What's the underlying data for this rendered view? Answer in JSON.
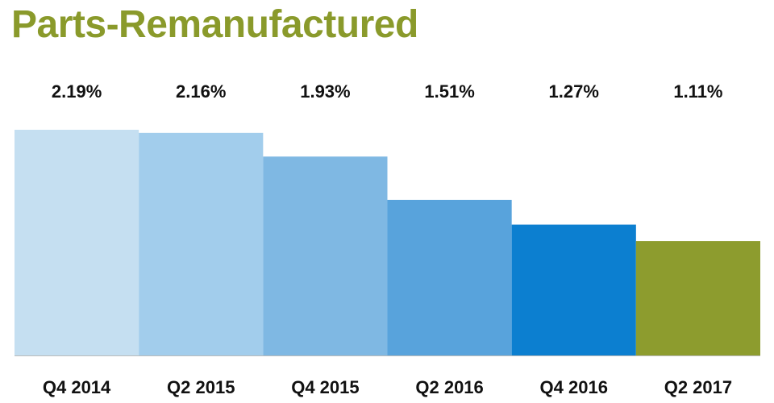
{
  "chart_data": {
    "type": "bar",
    "title": "Parts-Remanufactured",
    "categories": [
      "Q4 2014",
      "Q2 2015",
      "Q4 2015",
      "Q2 2016",
      "Q4 2016",
      "Q2 2017"
    ],
    "values": [
      2.19,
      2.16,
      1.93,
      1.51,
      1.27,
      1.11
    ],
    "data_labels": [
      "2.19%",
      "2.16%",
      "1.93%",
      "1.51%",
      "1.27%",
      "1.11%"
    ],
    "colors": [
      "#c5dff1",
      "#a2cdec",
      "#7fb8e3",
      "#58a3dc",
      "#0c7fd0",
      "#8d9c2e"
    ],
    "xlabel": "",
    "ylabel": "",
    "ylim": [
      0,
      2.19
    ],
    "grid": false,
    "legend": "none"
  },
  "colors": {
    "title": "#8a9a2b",
    "axis": "#bbbbbb"
  }
}
